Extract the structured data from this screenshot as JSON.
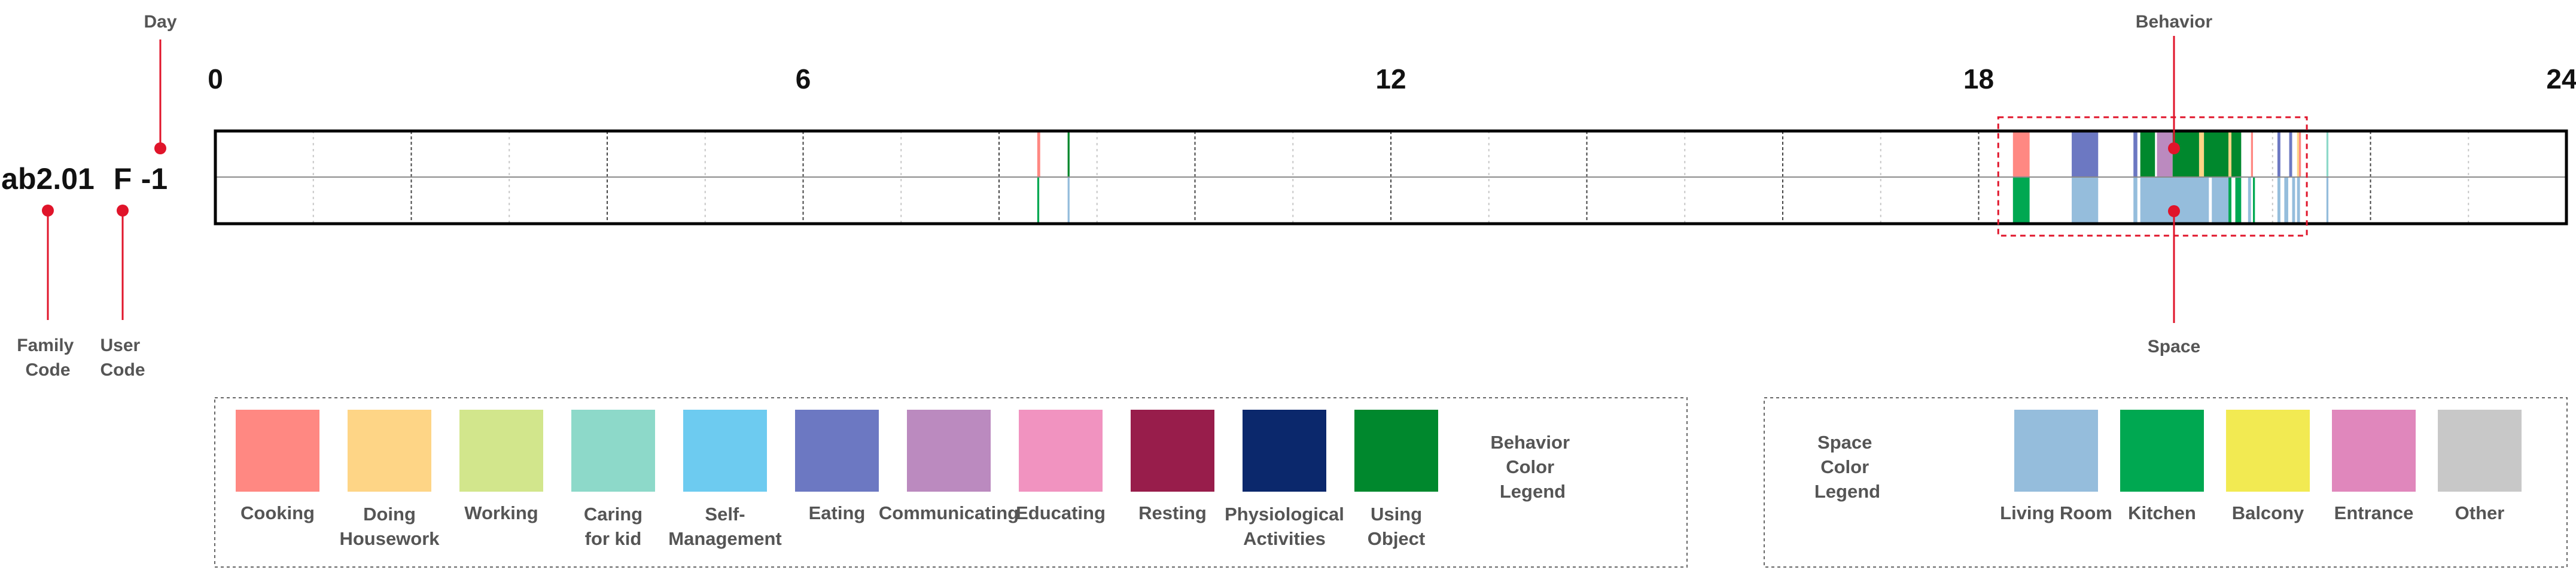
{
  "codes": {
    "family_value": "ab2.01",
    "user_value": "F",
    "day_value": "-1",
    "family_label": [
      "Family",
      "Code"
    ],
    "user_label": [
      "User",
      "Code"
    ],
    "day_label": "Day",
    "behavior_label": "Behavior",
    "space_label": "Space"
  },
  "timeline": {
    "hour_range": [
      0,
      24
    ],
    "tick_labels": [
      "0",
      "6",
      "12",
      "18",
      "24"
    ],
    "tick_hours": [
      0,
      6,
      12,
      18,
      24
    ],
    "highlight_window": [
      18.2,
      21.35
    ],
    "behavior_segments": [
      {
        "start": 8.39,
        "end": 8.42,
        "cat": "Cooking"
      },
      {
        "start": 8.7,
        "end": 8.72,
        "cat": "Using Object"
      },
      {
        "start": 18.35,
        "end": 18.52,
        "cat": "Cooking"
      },
      {
        "start": 18.95,
        "end": 19.22,
        "cat": "Eating"
      },
      {
        "start": 19.58,
        "end": 19.62,
        "cat": "Eating"
      },
      {
        "start": 19.65,
        "end": 19.8,
        "cat": "Using Object"
      },
      {
        "start": 19.82,
        "end": 19.98,
        "cat": "Communicating"
      },
      {
        "start": 19.98,
        "end": 20.25,
        "cat": "Using Object"
      },
      {
        "start": 20.25,
        "end": 20.3,
        "cat": "Doing Housework"
      },
      {
        "start": 20.3,
        "end": 20.55,
        "cat": "Using Object"
      },
      {
        "start": 20.55,
        "end": 20.58,
        "cat": "Doing Housework"
      },
      {
        "start": 20.58,
        "end": 20.68,
        "cat": "Using Object"
      },
      {
        "start": 20.78,
        "end": 20.8,
        "cat": "Cooking"
      },
      {
        "start": 21.05,
        "end": 21.08,
        "cat": "Eating"
      },
      {
        "start": 21.17,
        "end": 21.2,
        "cat": "Eating"
      },
      {
        "start": 21.25,
        "end": 21.27,
        "cat": "Doing Housework"
      },
      {
        "start": 21.27,
        "end": 21.29,
        "cat": "Cooking"
      },
      {
        "start": 21.55,
        "end": 21.57,
        "cat": "Caring for kid"
      }
    ],
    "space_segments": [
      {
        "start": 8.39,
        "end": 8.41,
        "cat": "Kitchen"
      },
      {
        "start": 8.7,
        "end": 8.72,
        "cat": "Living Room"
      },
      {
        "start": 18.35,
        "end": 18.52,
        "cat": "Kitchen"
      },
      {
        "start": 18.95,
        "end": 19.22,
        "cat": "Living Room"
      },
      {
        "start": 19.58,
        "end": 19.62,
        "cat": "Living Room"
      },
      {
        "start": 19.65,
        "end": 20.35,
        "cat": "Living Room"
      },
      {
        "start": 20.38,
        "end": 20.55,
        "cat": "Living Room"
      },
      {
        "start": 20.55,
        "end": 20.58,
        "cat": "Kitchen"
      },
      {
        "start": 20.62,
        "end": 20.68,
        "cat": "Kitchen"
      },
      {
        "start": 20.75,
        "end": 20.78,
        "cat": "Living Room"
      },
      {
        "start": 20.8,
        "end": 20.82,
        "cat": "Kitchen"
      },
      {
        "start": 21.05,
        "end": 21.08,
        "cat": "Living Room"
      },
      {
        "start": 21.12,
        "end": 21.16,
        "cat": "Living Room"
      },
      {
        "start": 21.2,
        "end": 21.23,
        "cat": "Living Room"
      },
      {
        "start": 21.25,
        "end": 21.28,
        "cat": "Living Room"
      },
      {
        "start": 21.55,
        "end": 21.57,
        "cat": "Living Room"
      }
    ]
  },
  "behavior_legend": {
    "title": [
      "Behavior",
      "Color",
      "Legend"
    ],
    "items": [
      {
        "name": "Cooking",
        "lines": [
          "Cooking"
        ],
        "color": "#FF8882"
      },
      {
        "name": "Doing Housework",
        "lines": [
          "Doing",
          "Housework"
        ],
        "color": "#FED586"
      },
      {
        "name": "Working",
        "lines": [
          "Working"
        ],
        "color": "#D2E68C"
      },
      {
        "name": "Caring for kid",
        "lines": [
          "Caring",
          "for kid"
        ],
        "color": "#8DD9C9"
      },
      {
        "name": "Self-Management",
        "lines": [
          "Self-",
          "Management"
        ],
        "color": "#6DCBF0"
      },
      {
        "name": "Eating",
        "lines": [
          "Eating"
        ],
        "color": "#6C78C2"
      },
      {
        "name": "Communicating",
        "lines": [
          "Communicating"
        ],
        "color": "#BB8ABF"
      },
      {
        "name": "Educating",
        "lines": [
          "Educating"
        ],
        "color": "#F193C0"
      },
      {
        "name": "Resting",
        "lines": [
          "Resting"
        ],
        "color": "#981D4B"
      },
      {
        "name": "Physiological Activities",
        "lines": [
          "Physiological",
          "Activities"
        ],
        "color": "#0B286C"
      },
      {
        "name": "Using Object",
        "lines": [
          "Using",
          "Object"
        ],
        "color": "#00882D"
      }
    ]
  },
  "space_legend": {
    "title": [
      "Space",
      "Color",
      "Legend"
    ],
    "items": [
      {
        "name": "Living Room",
        "lines": [
          "Living Room"
        ],
        "color": "#95BDDC"
      },
      {
        "name": "Kitchen",
        "lines": [
          "Kitchen"
        ],
        "color": "#00A851"
      },
      {
        "name": "Balcony",
        "lines": [
          "Balcony"
        ],
        "color": "#F2EA52"
      },
      {
        "name": "Entrance",
        "lines": [
          "Entrance"
        ],
        "color": "#E087BC"
      },
      {
        "name": "Other",
        "lines": [
          "Other"
        ],
        "color": "#C8C8C8"
      }
    ]
  },
  "colors": {
    "annotation": "#E0142A",
    "text": "#555555",
    "frame": "#000000",
    "grid_major": "#444444",
    "grid_minor": "#C8C8C8",
    "midline": "#8A8A8A"
  }
}
